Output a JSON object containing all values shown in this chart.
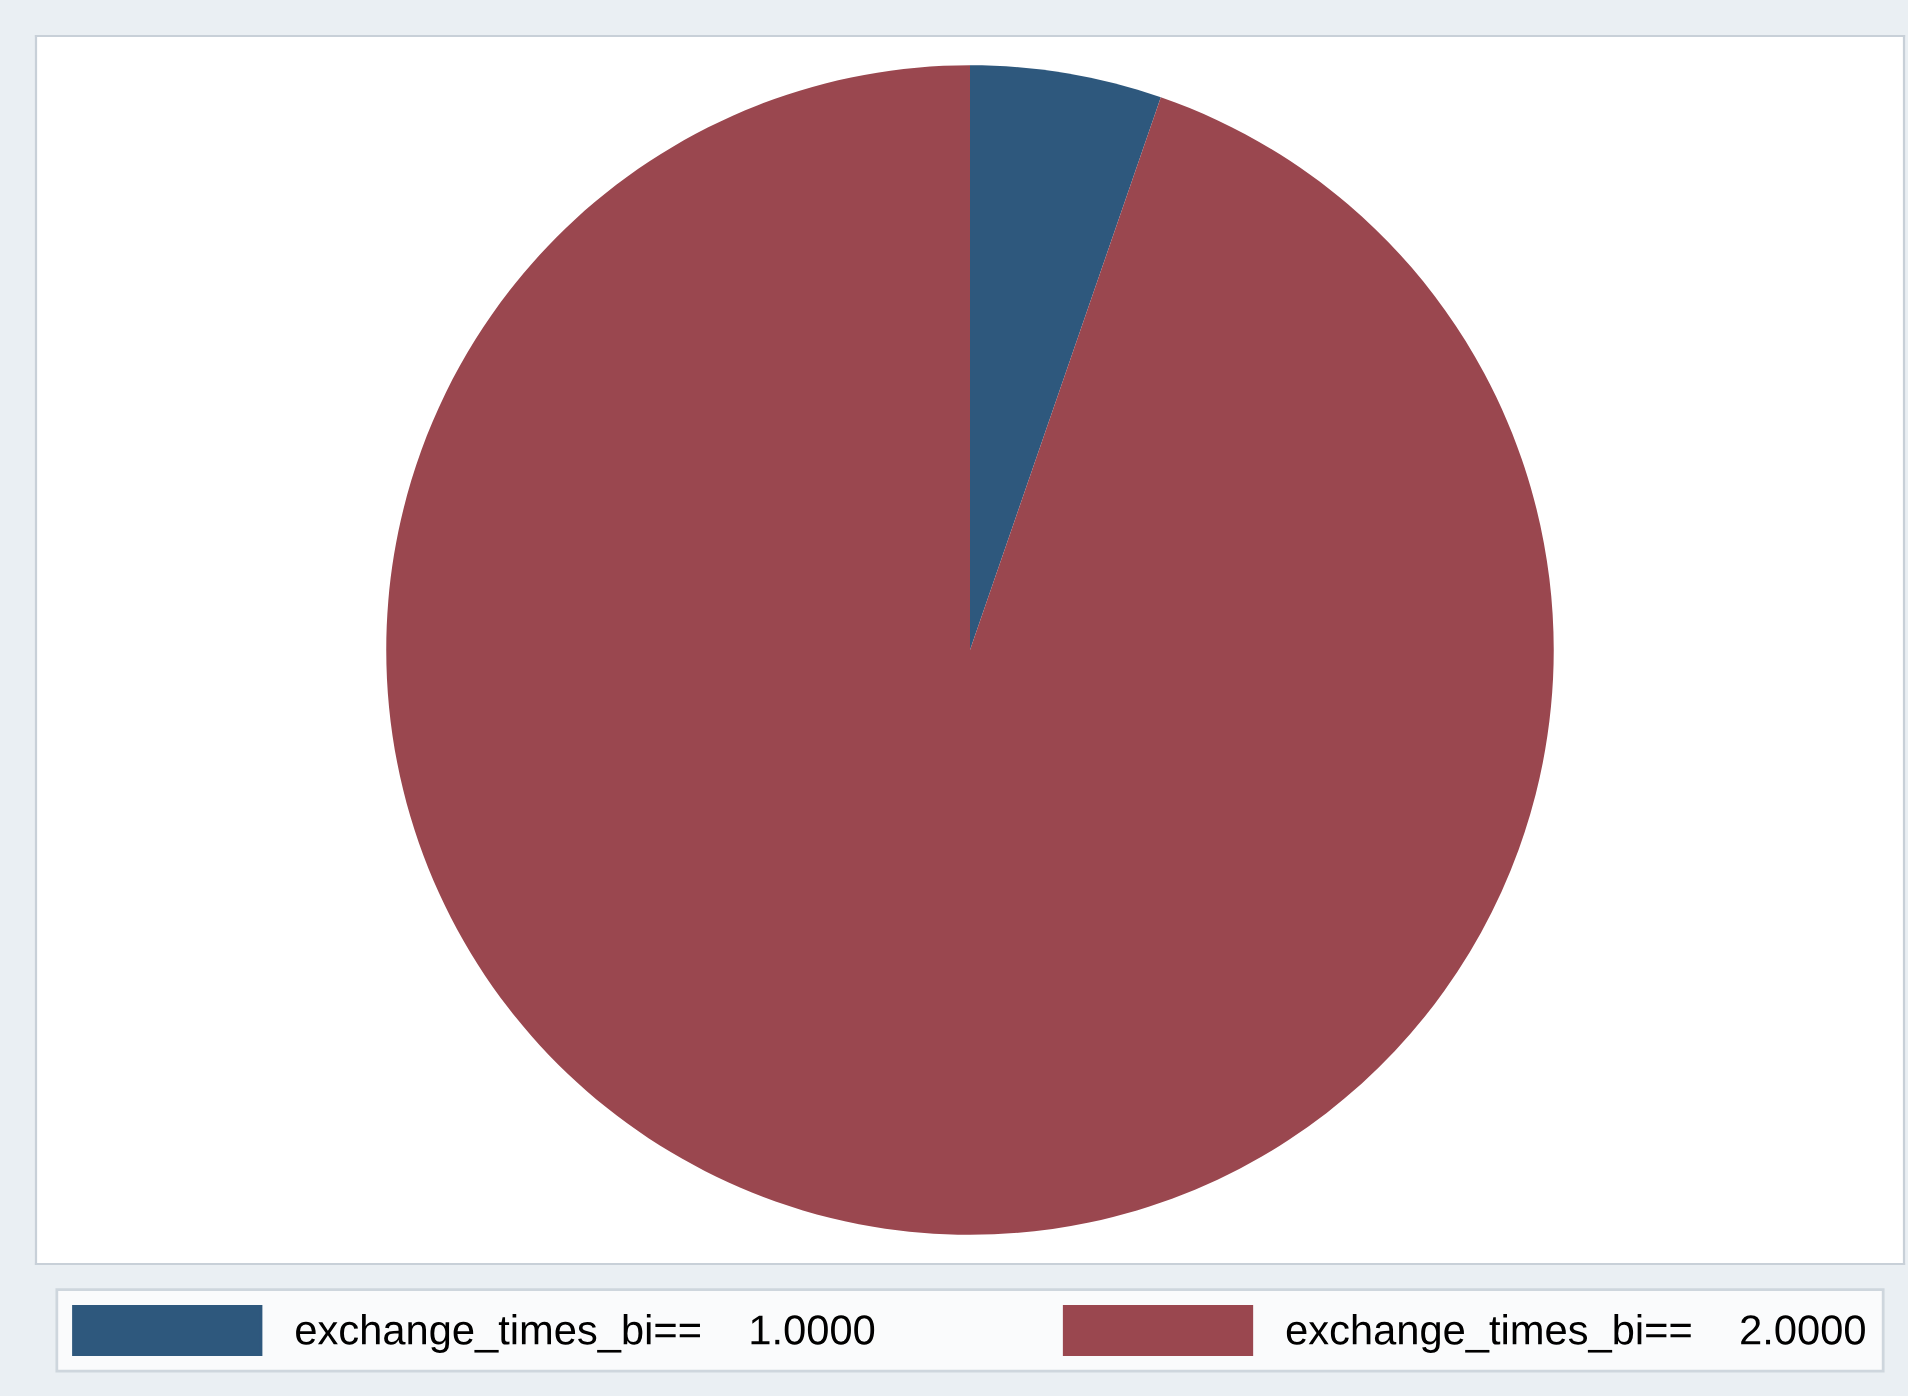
{
  "chart_data": {
    "type": "pie",
    "categories": [
      "exchange_times_bi==    1.0000",
      "exchange_times_bi==    2.0000"
    ],
    "values": [
      5.3,
      94.7
    ],
    "colors": [
      "#2e587d",
      "#9a474f"
    ],
    "legend": "bottom"
  }
}
